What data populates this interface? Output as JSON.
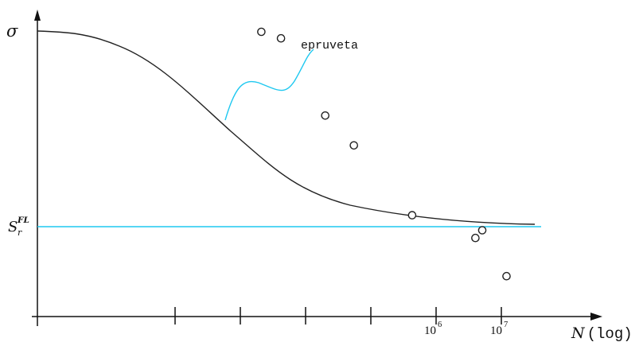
{
  "chart_data": {
    "type": "scatter",
    "title": "",
    "ylabel": "σ",
    "xlabel": {
      "main": "N",
      "suffix": "(log)"
    },
    "x_scale": "log",
    "x_tick_labels": [
      {
        "base": "10",
        "exp": "6",
        "value": 1000000
      },
      {
        "base": "10",
        "exp": "7",
        "value": 10000000
      }
    ],
    "y_tick_label": {
      "main": "S",
      "sub": "r",
      "sup": "FL"
    },
    "annotation": "epruveta",
    "limit_color": "#1ec8f0",
    "curve_color": "#222222",
    "points": [
      {
        "x": 2100,
        "y": 100
      },
      {
        "x": 4200,
        "y": 97.7
      },
      {
        "x": 20000,
        "y": 70.6
      },
      {
        "x": 55000,
        "y": 60.1
      },
      {
        "x": 430000,
        "y": 35.6
      },
      {
        "x": 4000000,
        "y": 27.6
      },
      {
        "x": 5100000,
        "y": 30.3
      },
      {
        "x": 12000000,
        "y": 14.2
      }
    ]
  }
}
